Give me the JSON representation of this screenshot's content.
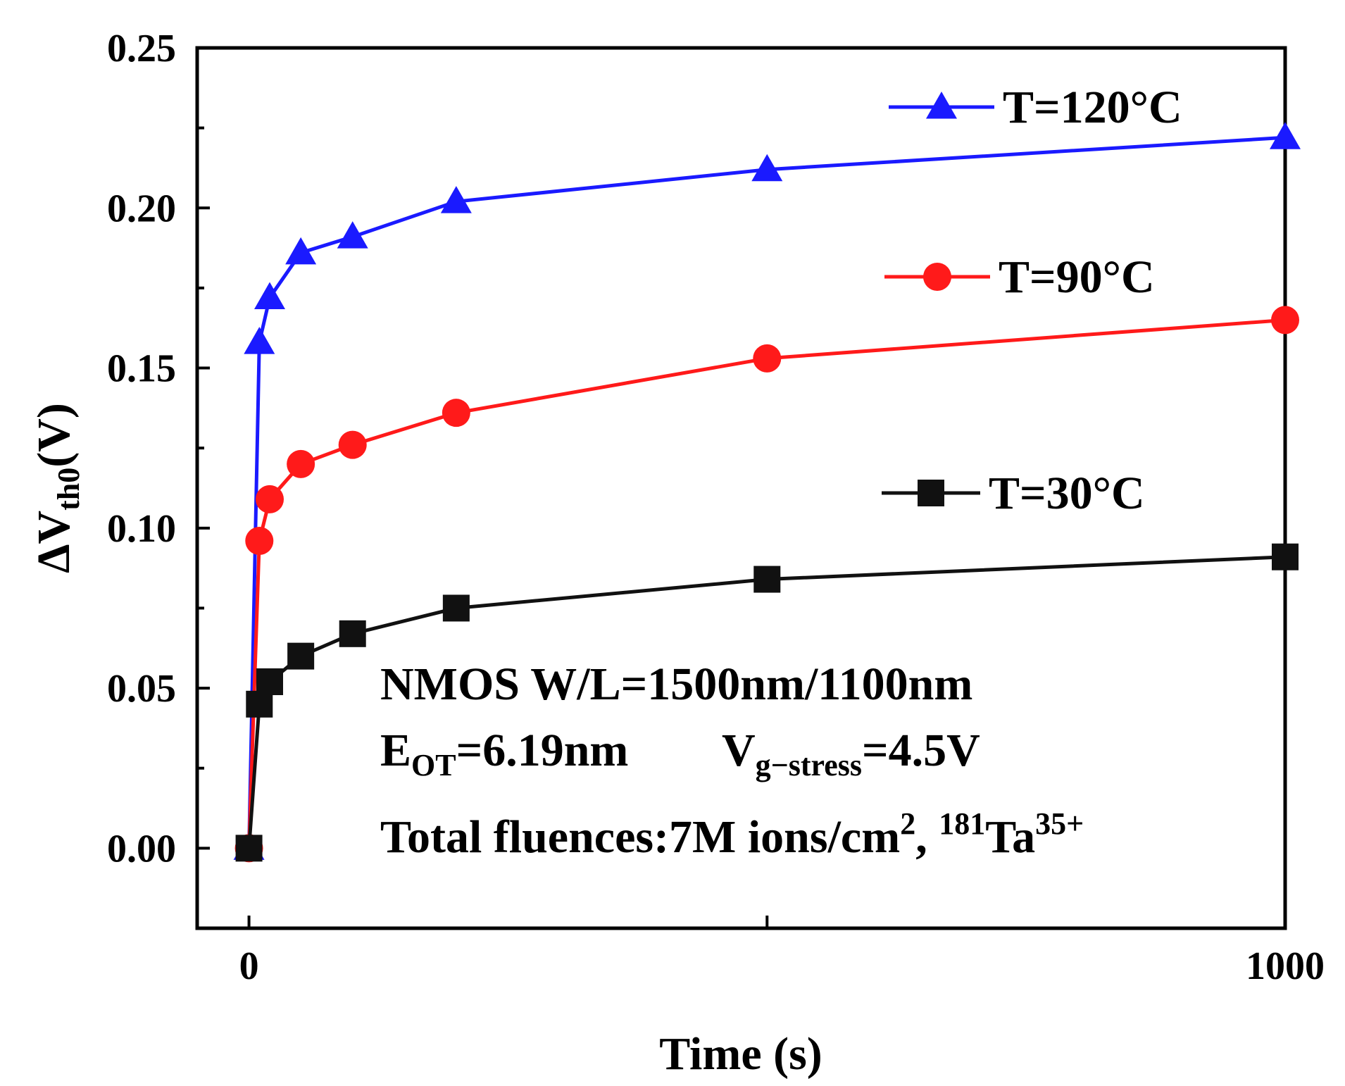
{
  "chart_data": {
    "type": "line",
    "title": "",
    "xlabel": "Time (s)",
    "ylabel": {
      "prefix": "ΔV",
      "subscript": "th0",
      "suffix": "(V)"
    },
    "xlim": [
      -50,
      1000
    ],
    "ylim": [
      -0.025,
      0.25
    ],
    "x_ticks": [
      0,
      1000
    ],
    "y_ticks": [
      "0.00",
      "0.05",
      "0.10",
      "0.15",
      "0.20",
      "0.25"
    ],
    "y_tick_values": [
      0,
      0.05,
      0.1,
      0.15,
      0.2,
      0.25
    ],
    "series": [
      {
        "name": "T=120°C",
        "color": "#1a1aff",
        "marker": "triangle",
        "x": [
          0,
          10,
          20,
          50,
          100,
          200,
          500,
          1000
        ],
        "y": [
          0.0,
          0.158,
          0.172,
          0.186,
          0.191,
          0.202,
          0.212,
          0.222
        ]
      },
      {
        "name": "T=90°C",
        "color": "#ff1a1a",
        "marker": "circle",
        "x": [
          0,
          10,
          20,
          50,
          100,
          200,
          500,
          1000
        ],
        "y": [
          0.0,
          0.096,
          0.109,
          0.12,
          0.126,
          0.136,
          0.153,
          0.165
        ]
      },
      {
        "name": "T=30°C",
        "color": "#111111",
        "marker": "square",
        "x": [
          0,
          10,
          20,
          50,
          100,
          200,
          500,
          1000
        ],
        "y": [
          0.0,
          0.045,
          0.052,
          0.06,
          0.067,
          0.075,
          0.084,
          0.091
        ]
      }
    ],
    "annotations": {
      "line1": "NMOS W/L=1500nm/1100nm",
      "line2": {
        "e_main": "E",
        "e_sub": "OT",
        "e_value": "=6.19nm",
        "v_main": "V",
        "v_sub": "g−stress",
        "v_value": "=4.5V"
      },
      "line3": {
        "text": "Total fluences:7M ions/cm",
        "sup1": "2",
        "sep": ", ",
        "mass_sup": "181",
        "element": "Ta",
        "charge_sup": "35+"
      }
    },
    "legend_position": "right"
  }
}
